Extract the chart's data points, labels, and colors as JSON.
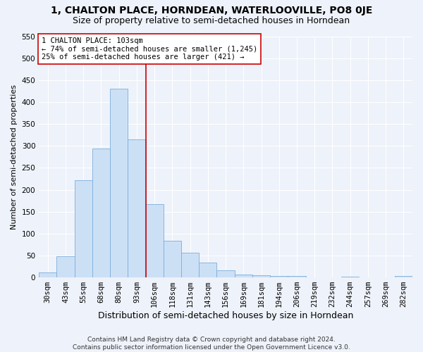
{
  "title": "1, CHALTON PLACE, HORNDEAN, WATERLOOVILLE, PO8 0JE",
  "subtitle": "Size of property relative to semi-detached houses in Horndean",
  "xlabel": "Distribution of semi-detached houses by size in Horndean",
  "ylabel": "Number of semi-detached properties",
  "footer": "Contains HM Land Registry data © Crown copyright and database right 2024.\nContains public sector information licensed under the Open Government Licence v3.0.",
  "bin_labels": [
    "30sqm",
    "43sqm",
    "55sqm",
    "68sqm",
    "80sqm",
    "93sqm",
    "106sqm",
    "118sqm",
    "131sqm",
    "143sqm",
    "156sqm",
    "169sqm",
    "181sqm",
    "194sqm",
    "206sqm",
    "219sqm",
    "232sqm",
    "244sqm",
    "257sqm",
    "269sqm",
    "282sqm"
  ],
  "bar_values": [
    12,
    48,
    221,
    294,
    430,
    315,
    167,
    83,
    57,
    34,
    16,
    7,
    5,
    3,
    4,
    0,
    0,
    1,
    0,
    0,
    3
  ],
  "bar_color": "#cce0f5",
  "bar_edge_color": "#7aaedc",
  "vline_x_index": 5.5,
  "vline_color": "#cc0000",
  "annotation_text": "1 CHALTON PLACE: 103sqm\n← 74% of semi-detached houses are smaller (1,245)\n25% of semi-detached houses are larger (421) →",
  "annotation_box_color": "#ffffff",
  "annotation_box_edge": "#cc0000",
  "ylim": [
    0,
    550
  ],
  "yticks": [
    0,
    50,
    100,
    150,
    200,
    250,
    300,
    350,
    400,
    450,
    500,
    550
  ],
  "background_color": "#eef2fa",
  "grid_color": "#ffffff",
  "title_fontsize": 10,
  "subtitle_fontsize": 9,
  "ylabel_fontsize": 8,
  "xlabel_fontsize": 9,
  "tick_fontsize": 7.5,
  "annotation_fontsize": 7.5,
  "footer_fontsize": 6.5
}
